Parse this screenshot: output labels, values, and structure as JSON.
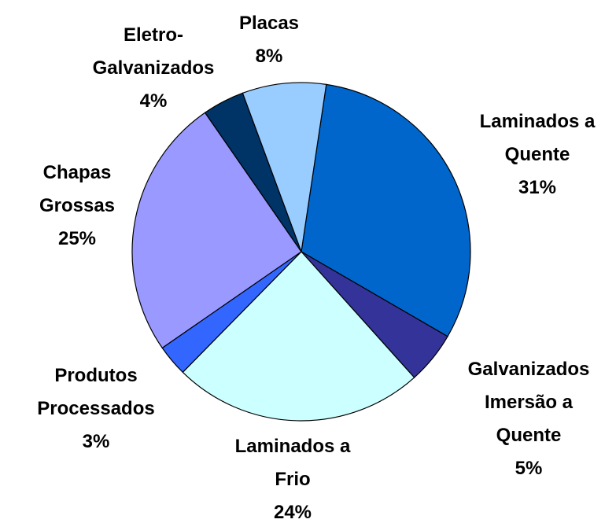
{
  "chart_data": {
    "type": "pie",
    "categories": [
      "Laminados a\nQuente",
      "Galvanizados\nImersão a\nQuente",
      "Laminados a\nFrio",
      "Produtos\nProcessados",
      "Chapas\nGrossas",
      "Eletro-\nGalvanizados",
      "Placas"
    ],
    "values": [
      31,
      5,
      24,
      3,
      25,
      4,
      8
    ],
    "value_labels": [
      "31%",
      "5%",
      "24%",
      "3%",
      "25%",
      "4%",
      "8%"
    ],
    "colors": [
      "#0066cc",
      "#333399",
      "#ccffff",
      "#3366ff",
      "#9999ff",
      "#003366",
      "#99ccff"
    ]
  }
}
